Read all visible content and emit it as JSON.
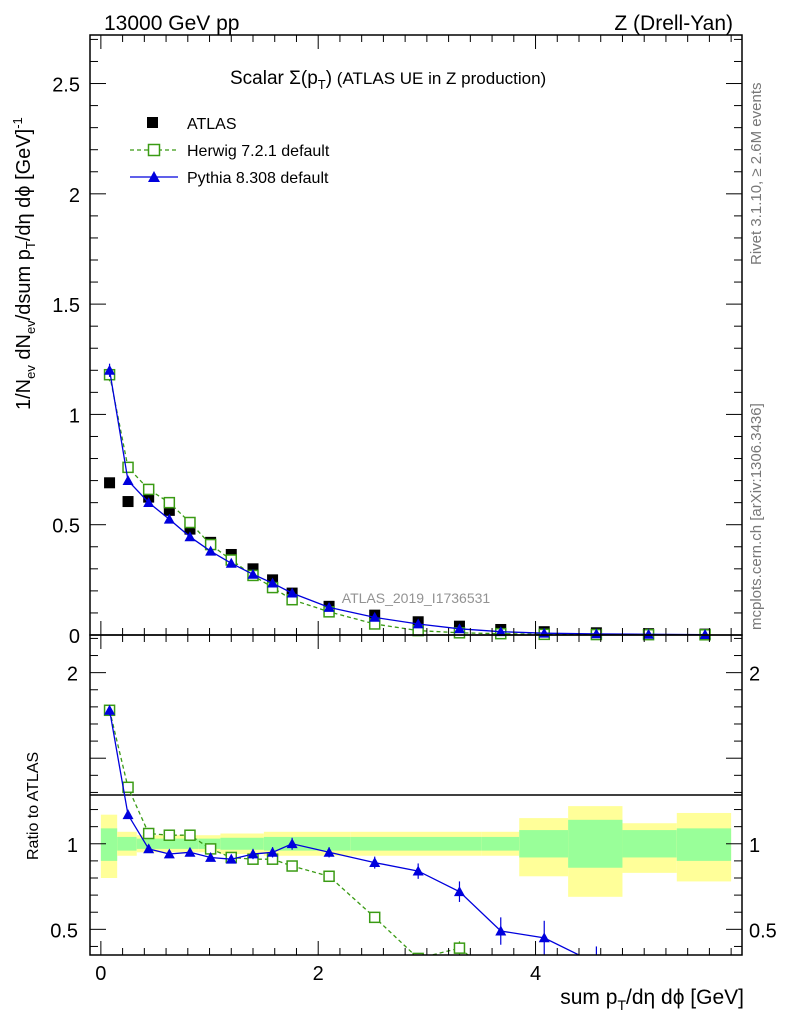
{
  "header": {
    "left": "13000 GeV pp",
    "right": "Z (Drell-Yan)"
  },
  "side_text": {
    "rivet": "Rivet 3.1.10, ≥ 2.6M events",
    "mcplots": "mcplots.cern.ch [arXiv:1306.3436]"
  },
  "watermark": "ATLAS_2019_I1736531",
  "colors": {
    "atlas": "#000000",
    "herwig": "#3a9b14",
    "pythia": "#0000dd",
    "band_inner": "#99ff99",
    "band_outer": "#ffff99"
  },
  "chart_data": [
    {
      "type": "scatter",
      "title_main": "Scalar Σ(p",
      "title_sub": "T",
      "title_close": ")",
      "title_rest": " (ATLAS UE in Z production)",
      "ylabel": {
        "a": "1/N",
        "a_sub": "ev",
        "b": " dN",
        "b_sub": "ev",
        "c": "/dsum p",
        "c_sub": "T",
        "d": "/dη dϕ  [GeV]",
        "d_sup": "-1"
      },
      "xlim": [
        -0.1,
        5.9
      ],
      "ylim": [
        0,
        2.72
      ],
      "yticks": [
        {
          "v": 0.5,
          "label": "0.5"
        },
        {
          "v": 1,
          "label": "1"
        },
        {
          "v": 1.5,
          "label": "1.5"
        },
        {
          "v": 2,
          "label": "2"
        },
        {
          "v": 2.5,
          "label": "2.5"
        },
        {
          "v": 0,
          "label": "0"
        }
      ],
      "legend": [
        {
          "key": "atlas",
          "label": "ATLAS"
        },
        {
          "key": "herwig",
          "label": "Herwig 7.2.1 default"
        },
        {
          "key": "pythia",
          "label": "Pythia 8.308 default"
        }
      ],
      "series": [
        {
          "key": "atlas",
          "name": "ATLAS",
          "x": [
            0.08,
            0.25,
            0.44,
            0.63,
            0.82,
            1.01,
            1.2,
            1.4,
            1.58,
            1.76,
            2.1,
            2.52,
            2.92,
            3.3,
            3.68,
            4.08,
            4.56,
            5.04,
            5.56
          ],
          "y": [
            0.69,
            0.605,
            0.625,
            0.565,
            0.48,
            0.42,
            0.365,
            0.3,
            0.25,
            0.19,
            0.13,
            0.09,
            0.06,
            0.04,
            0.025,
            0.015,
            0.01,
            0.006,
            0.004
          ]
        },
        {
          "key": "herwig",
          "name": "Herwig 7.2.1 default",
          "x": [
            0.08,
            0.25,
            0.44,
            0.63,
            0.82,
            1.01,
            1.2,
            1.4,
            1.58,
            1.76,
            2.1,
            2.52,
            2.92,
            3.3,
            3.68,
            4.08,
            4.56,
            5.04,
            5.56
          ],
          "y": [
            1.18,
            0.76,
            0.66,
            0.6,
            0.51,
            0.41,
            0.34,
            0.27,
            0.215,
            0.16,
            0.105,
            0.05,
            0.02,
            0.01,
            0.006,
            0.003,
            0.002,
            0.0015,
            0.001
          ],
          "err": [
            0.03,
            0.015,
            0.012,
            0.012,
            0.01,
            0.008,
            0.007,
            0.006,
            0.005,
            0.004,
            0.003,
            0.002,
            0.001,
            0.001,
            0.001,
            0.001,
            0.001,
            0.001,
            0.001
          ]
        },
        {
          "key": "pythia",
          "name": "Pythia 8.308 default",
          "x": [
            0.08,
            0.25,
            0.44,
            0.63,
            0.82,
            1.01,
            1.2,
            1.4,
            1.58,
            1.76,
            2.1,
            2.52,
            2.92,
            3.3,
            3.68,
            4.08,
            4.56,
            5.04,
            5.56
          ],
          "y": [
            1.2,
            0.7,
            0.6,
            0.525,
            0.445,
            0.38,
            0.325,
            0.275,
            0.235,
            0.19,
            0.125,
            0.08,
            0.05,
            0.028,
            0.015,
            0.008,
            0.005,
            0.003,
            0.002
          ],
          "err": [
            0.03,
            0.015,
            0.012,
            0.012,
            0.01,
            0.008,
            0.007,
            0.006,
            0.005,
            0.004,
            0.003,
            0.002,
            0.002,
            0.001,
            0.001,
            0.001,
            0.001,
            0.001,
            0.001
          ]
        }
      ]
    },
    {
      "type": "line",
      "ylabel": "Ratio to ATLAS",
      "xlabel": {
        "a": "sum p",
        "a_sub": "T",
        "b": "/dη dϕ [GeV]"
      },
      "xlim": [
        -0.1,
        5.9
      ],
      "ylim": [
        0.35,
        2.22
      ],
      "xticks": [
        {
          "v": 0,
          "label": "0"
        },
        {
          "v": 2,
          "label": "2"
        },
        {
          "v": 4,
          "label": "4"
        }
      ],
      "yticks": [
        {
          "v": 0.5,
          "label": "0.5"
        },
        {
          "v": 1,
          "label": "1"
        },
        {
          "v": 2,
          "label": "2"
        }
      ],
      "bands": [
        {
          "x0": 0,
          "x1": 0.15,
          "inner": [
            0.9,
            1.09
          ],
          "outer": [
            0.8,
            1.17
          ]
        },
        {
          "x0": 0.15,
          "x1": 0.33,
          "inner": [
            0.96,
            1.04
          ],
          "outer": [
            0.93,
            1.07
          ]
        },
        {
          "x0": 0.33,
          "x1": 0.9,
          "inner": [
            0.97,
            1.03
          ],
          "outer": [
            0.95,
            1.05
          ]
        },
        {
          "x0": 0.9,
          "x1": 1.1,
          "inner": [
            0.97,
            1.03
          ],
          "outer": [
            0.95,
            1.05
          ]
        },
        {
          "x0": 1.1,
          "x1": 1.5,
          "inner": [
            0.965,
            1.035
          ],
          "outer": [
            0.94,
            1.06
          ]
        },
        {
          "x0": 1.5,
          "x1": 2.3,
          "inner": [
            0.96,
            1.04
          ],
          "outer": [
            0.93,
            1.07
          ]
        },
        {
          "x0": 2.3,
          "x1": 3.5,
          "inner": [
            0.96,
            1.04
          ],
          "outer": [
            0.93,
            1.07
          ]
        },
        {
          "x0": 3.5,
          "x1": 3.85,
          "inner": [
            0.96,
            1.04
          ],
          "outer": [
            0.93,
            1.07
          ]
        },
        {
          "x0": 3.85,
          "x1": 4.3,
          "inner": [
            0.92,
            1.08
          ],
          "outer": [
            0.81,
            1.15
          ]
        },
        {
          "x0": 4.3,
          "x1": 4.8,
          "inner": [
            0.86,
            1.14
          ],
          "outer": [
            0.69,
            1.22
          ]
        },
        {
          "x0": 4.8,
          "x1": 5.3,
          "inner": [
            0.92,
            1.08
          ],
          "outer": [
            0.83,
            1.12
          ]
        },
        {
          "x0": 5.3,
          "x1": 5.8,
          "inner": [
            0.9,
            1.09
          ],
          "outer": [
            0.78,
            1.18
          ]
        }
      ],
      "series": [
        {
          "key": "herwig",
          "name": "Herwig 7.2.1 default",
          "x": [
            0.08,
            0.25,
            0.44,
            0.63,
            0.82,
            1.01,
            1.2,
            1.4,
            1.58,
            1.76,
            2.1,
            2.52,
            2.92,
            3.3,
            3.68
          ],
          "y": [
            1.78,
            1.33,
            1.06,
            1.05,
            1.05,
            0.97,
            0.92,
            0.91,
            0.91,
            0.87,
            0.81,
            0.57,
            0.33,
            0.39,
            0.2
          ],
          "err": [
            0.03,
            0.02,
            0.015,
            0.015,
            0.015,
            0.015,
            0.015,
            0.015,
            0.015,
            0.015,
            0.015,
            0.02,
            0.03,
            0.04,
            0.05
          ]
        },
        {
          "key": "pythia",
          "name": "Pythia 8.308 default",
          "x": [
            0.08,
            0.25,
            0.44,
            0.63,
            0.82,
            1.01,
            1.2,
            1.4,
            1.58,
            1.76,
            2.1,
            2.52,
            2.92,
            3.3,
            3.68,
            4.08,
            4.56
          ],
          "y": [
            1.78,
            1.17,
            0.97,
            0.94,
            0.95,
            0.92,
            0.91,
            0.94,
            0.95,
            1.0,
            0.95,
            0.89,
            0.84,
            0.72,
            0.49,
            0.45,
            0.3
          ],
          "err": [
            0.03,
            0.02,
            0.015,
            0.02,
            0.02,
            0.02,
            0.025,
            0.03,
            0.03,
            0.035,
            0.03,
            0.035,
            0.045,
            0.06,
            0.08,
            0.1,
            0.1
          ]
        }
      ]
    }
  ]
}
